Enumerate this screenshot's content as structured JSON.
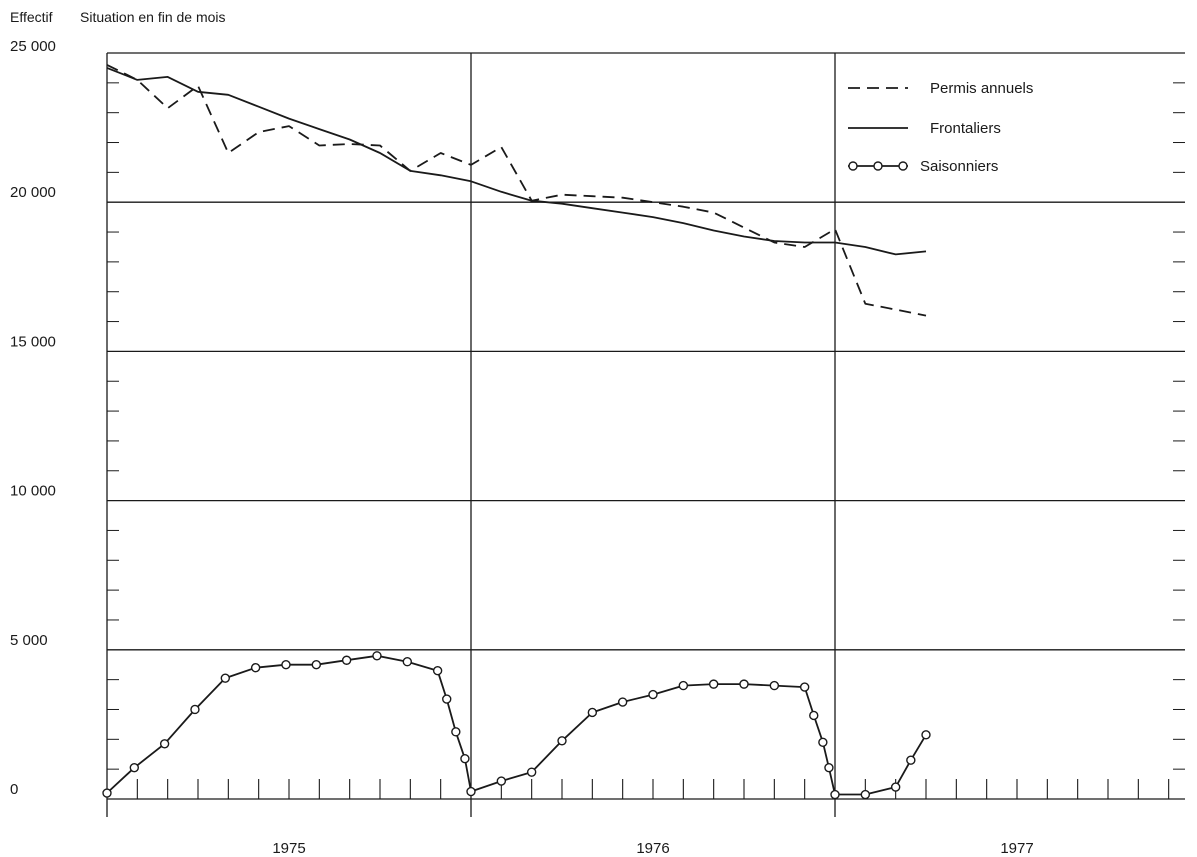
{
  "chart_data": {
    "type": "line",
    "ylabel": "Effectif",
    "subtitle": "Situation en fin de mois",
    "ylim": [
      0,
      25000
    ],
    "y_ticks": [
      {
        "value": 0,
        "label": "0"
      },
      {
        "value": 5000,
        "label": "5 000"
      },
      {
        "value": 10000,
        "label": "10 000"
      },
      {
        "value": 15000,
        "label": "15 000"
      },
      {
        "value": 20000,
        "label": "20 000"
      },
      {
        "value": 25000,
        "label": "25 000"
      }
    ],
    "x_unit": "month",
    "xlim": [
      0,
      36
    ],
    "year_labels": [
      {
        "label": "1975",
        "center": 6
      },
      {
        "label": "1976",
        "center": 18
      },
      {
        "label": "1977",
        "center": 30
      }
    ],
    "grid": true,
    "legend_position": "top-right",
    "series": [
      {
        "name": "Permis annuels",
        "style": "dashed",
        "points": [
          [
            0,
            24600
          ],
          [
            1,
            24100
          ],
          [
            2,
            23150
          ],
          [
            3,
            23900
          ],
          [
            4,
            21650
          ],
          [
            5,
            22350
          ],
          [
            6,
            22550
          ],
          [
            7,
            21900
          ],
          [
            8,
            21950
          ],
          [
            9,
            21900
          ],
          [
            10,
            21050
          ],
          [
            11,
            21650
          ],
          [
            12,
            21250
          ],
          [
            13,
            21850
          ],
          [
            14,
            20050
          ],
          [
            15,
            20250
          ],
          [
            16,
            20200
          ],
          [
            17,
            20150
          ],
          [
            18,
            20000
          ],
          [
            19,
            19850
          ],
          [
            20,
            19650
          ],
          [
            21,
            19150
          ],
          [
            22,
            18650
          ],
          [
            23,
            18500
          ],
          [
            24,
            19100
          ],
          [
            25,
            16600
          ],
          [
            26,
            16400
          ],
          [
            27,
            16200
          ]
        ]
      },
      {
        "name": "Frontaliers",
        "style": "solid",
        "points": [
          [
            0,
            24500
          ],
          [
            1,
            24100
          ],
          [
            2,
            24200
          ],
          [
            3,
            23700
          ],
          [
            4,
            23600
          ],
          [
            5,
            23200
          ],
          [
            6,
            22800
          ],
          [
            7,
            22450
          ],
          [
            8,
            22100
          ],
          [
            9,
            21650
          ],
          [
            10,
            21050
          ],
          [
            11,
            20900
          ],
          [
            12,
            20700
          ],
          [
            13,
            20350
          ],
          [
            14,
            20050
          ],
          [
            15,
            19950
          ],
          [
            16,
            19800
          ],
          [
            17,
            19650
          ],
          [
            18,
            19500
          ],
          [
            19,
            19300
          ],
          [
            20,
            19050
          ],
          [
            21,
            18850
          ],
          [
            22,
            18700
          ],
          [
            23,
            18650
          ],
          [
            24,
            18650
          ],
          [
            25,
            18500
          ],
          [
            26,
            18250
          ],
          [
            27,
            18350
          ]
        ]
      },
      {
        "name": "Saisonniers",
        "style": "solid-circles",
        "points": [
          [
            0,
            200
          ],
          [
            0.9,
            1050
          ],
          [
            1.9,
            1850
          ],
          [
            2.9,
            3000
          ],
          [
            3.9,
            4050
          ],
          [
            4.9,
            4400
          ],
          [
            5.9,
            4500
          ],
          [
            6.9,
            4500
          ],
          [
            7.9,
            4650
          ],
          [
            8.9,
            4800
          ],
          [
            9.9,
            4600
          ],
          [
            10.9,
            4300
          ],
          [
            11.2,
            3350
          ],
          [
            11.5,
            2250
          ],
          [
            11.8,
            1350
          ],
          [
            12,
            250
          ],
          [
            13,
            600
          ],
          [
            14,
            900
          ],
          [
            15,
            1950
          ],
          [
            16,
            2900
          ],
          [
            17,
            3250
          ],
          [
            18,
            3500
          ],
          [
            19,
            3800
          ],
          [
            20,
            3850
          ],
          [
            21,
            3850
          ],
          [
            22,
            3800
          ],
          [
            23,
            3750
          ],
          [
            23.3,
            2800
          ],
          [
            23.6,
            1900
          ],
          [
            23.8,
            1050
          ],
          [
            24,
            150
          ],
          [
            25,
            150
          ],
          [
            26,
            400
          ],
          [
            26.5,
            1300
          ],
          [
            27,
            2150
          ]
        ]
      }
    ]
  }
}
